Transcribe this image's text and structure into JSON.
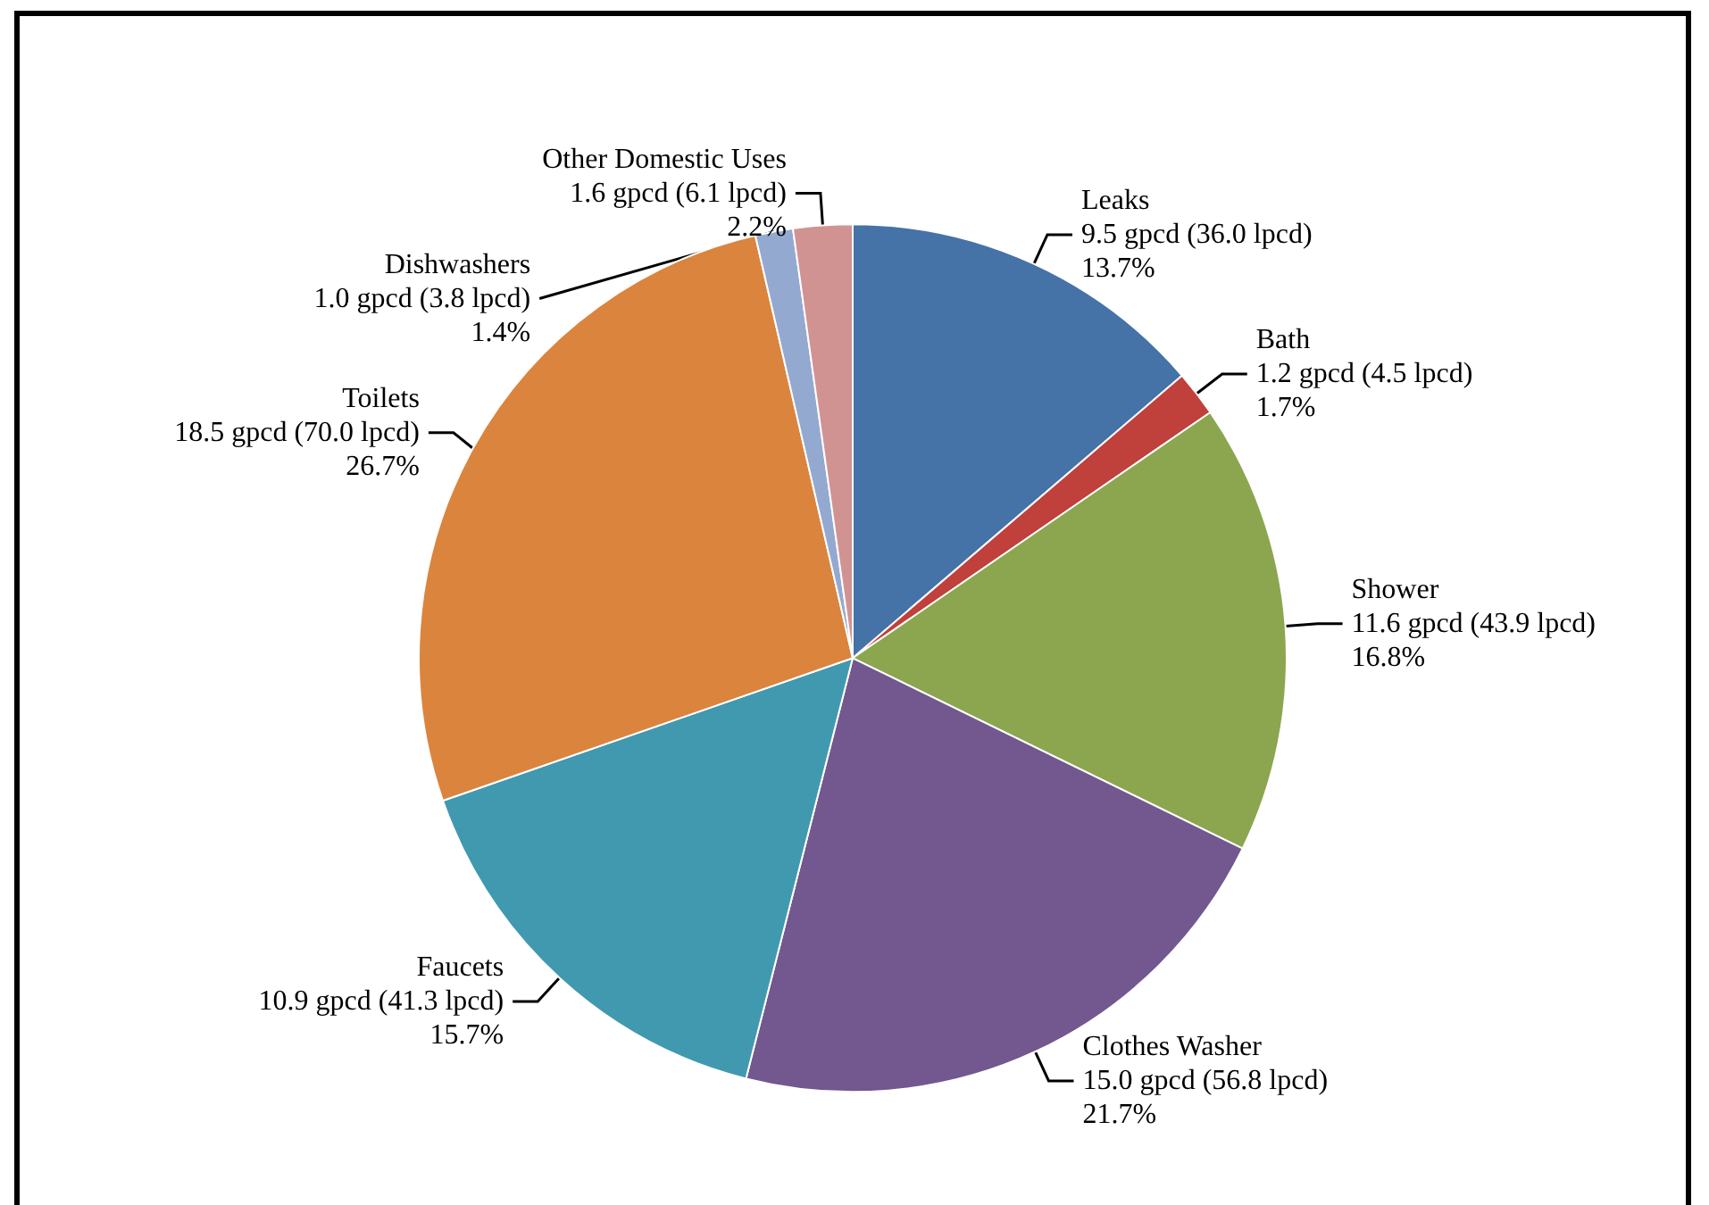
{
  "chart_data": {
    "type": "pie",
    "categories": [
      "Leaks",
      "Bath",
      "Shower",
      "Clothes Washer",
      "Faucets",
      "Toilets",
      "Dishwashers",
      "Other Domestic Uses"
    ],
    "values": [
      13.7,
      1.7,
      16.8,
      21.7,
      15.7,
      26.7,
      1.4,
      2.2
    ],
    "colors": [
      "#4572a7",
      "#c0403b",
      "#8ba64f",
      "#73578f",
      "#4199af",
      "#db843d",
      "#93a9d0",
      "#d19392"
    ],
    "value_labels": [
      "9.5 gpcd (36.0 lpcd)\n13.7%",
      "1.2 gpcd (4.5 lpcd)\n1.7%",
      "11.6 gpcd (43.9 lpcd)\n16.8%",
      "15.0 gpcd (56.8 lpcd)\n21.7%",
      "10.9 gpcd (41.3 lpcd)\n15.7%",
      "18.5 gpcd (70.0 lpcd)\n26.7%",
      "1.0 gpcd (3.8 lpcd)\n1.4%",
      "1.6 gpcd (6.1 lpcd)\n2.2%"
    ],
    "legend": false
  }
}
